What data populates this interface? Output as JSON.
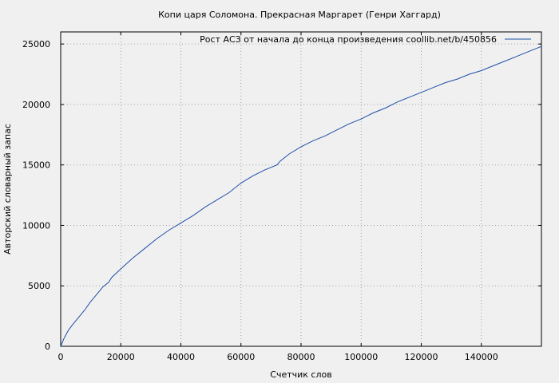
{
  "chart_data": {
    "type": "line",
    "title": "Копи царя Соломона. Прекрасная Маргарет (Генри Хаггард)",
    "xlabel": "Счетчик слов",
    "ylabel": "Авторский словарный запас",
    "xlim": [
      0,
      160000
    ],
    "ylim": [
      0,
      26000
    ],
    "xticks": [
      0,
      20000,
      40000,
      60000,
      80000,
      100000,
      120000,
      140000
    ],
    "yticks": [
      0,
      5000,
      10000,
      15000,
      20000,
      25000
    ],
    "grid": true,
    "legend_position": "top-right",
    "series": [
      {
        "name": "Рост АСЗ от начала до конца произведения coollib.net/b/450856",
        "color": "#1f4fa8",
        "x": [
          0,
          1000,
          2500,
          4000,
          6000,
          8000,
          10000,
          12000,
          14000,
          16000,
          17000,
          20000,
          24000,
          28000,
          32000,
          36000,
          40000,
          44000,
          48000,
          52000,
          56000,
          60000,
          64000,
          68000,
          72000,
          73000,
          76000,
          80000,
          84000,
          88000,
          92000,
          96000,
          100000,
          104000,
          108000,
          112000,
          116000,
          120000,
          124000,
          128000,
          132000,
          136000,
          140000,
          144000,
          148000,
          152000,
          156000,
          160000
        ],
        "y": [
          0,
          600,
          1300,
          1800,
          2400,
          3000,
          3700,
          4300,
          4900,
          5300,
          5700,
          6400,
          7300,
          8100,
          8900,
          9600,
          10200,
          10800,
          11500,
          12100,
          12700,
          13500,
          14100,
          14600,
          15000,
          15300,
          15900,
          16500,
          17000,
          17400,
          17900,
          18400,
          18800,
          19300,
          19700,
          20200,
          20600,
          21000,
          21400,
          21800,
          22100,
          22500,
          22800,
          23200,
          23600,
          24000,
          24400,
          24800
        ]
      }
    ]
  }
}
